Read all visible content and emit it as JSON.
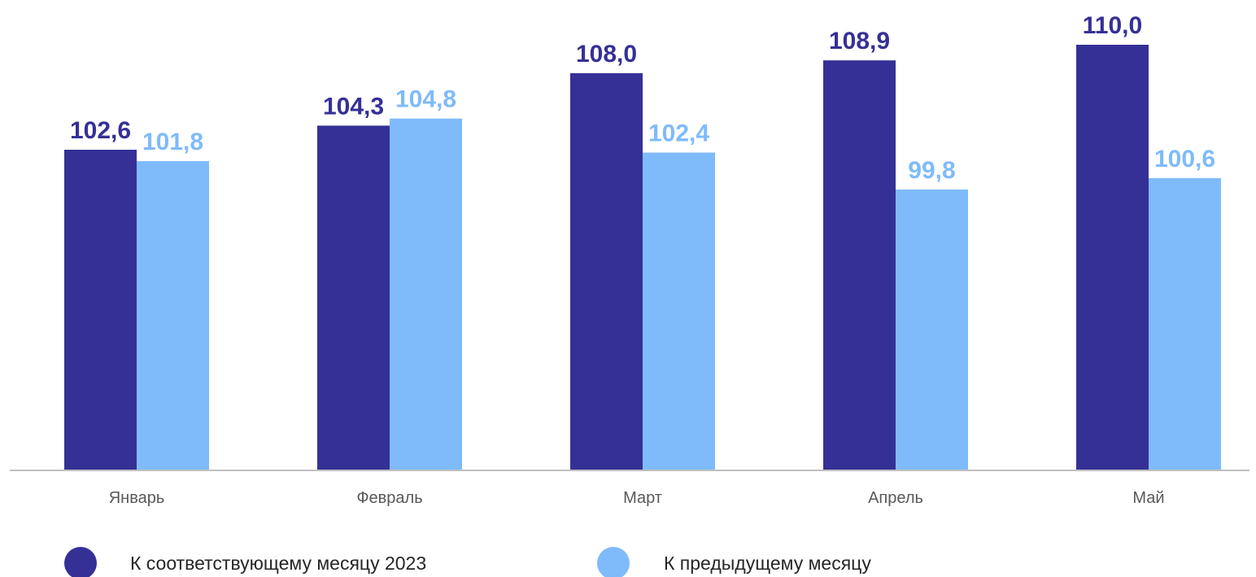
{
  "chart_data": {
    "type": "bar",
    "title": "",
    "xlabel": "",
    "ylabel": "",
    "categories": [
      "Январь",
      "Февраль",
      "Март",
      "Апрель",
      "Май"
    ],
    "series": [
      {
        "name": "К соответствующему месяцу 2023",
        "color": "#353096",
        "values": [
          102.6,
          104.3,
          108.0,
          108.9,
          110.0
        ],
        "labels": [
          "102,6",
          "104,3",
          "108,0",
          "108,9",
          "110,0"
        ]
      },
      {
        "name": "К предыдущему месяцу",
        "color": "#7fbbfb",
        "values": [
          101.8,
          104.8,
          102.4,
          99.8,
          100.6
        ],
        "labels": [
          "101,8",
          "104,8",
          "102,4",
          "99,8",
          "100,6"
        ]
      }
    ],
    "ylim": [
      80,
      110
    ],
    "grid": false,
    "legend": "bottom",
    "axis_color": "#bfbfbf"
  }
}
